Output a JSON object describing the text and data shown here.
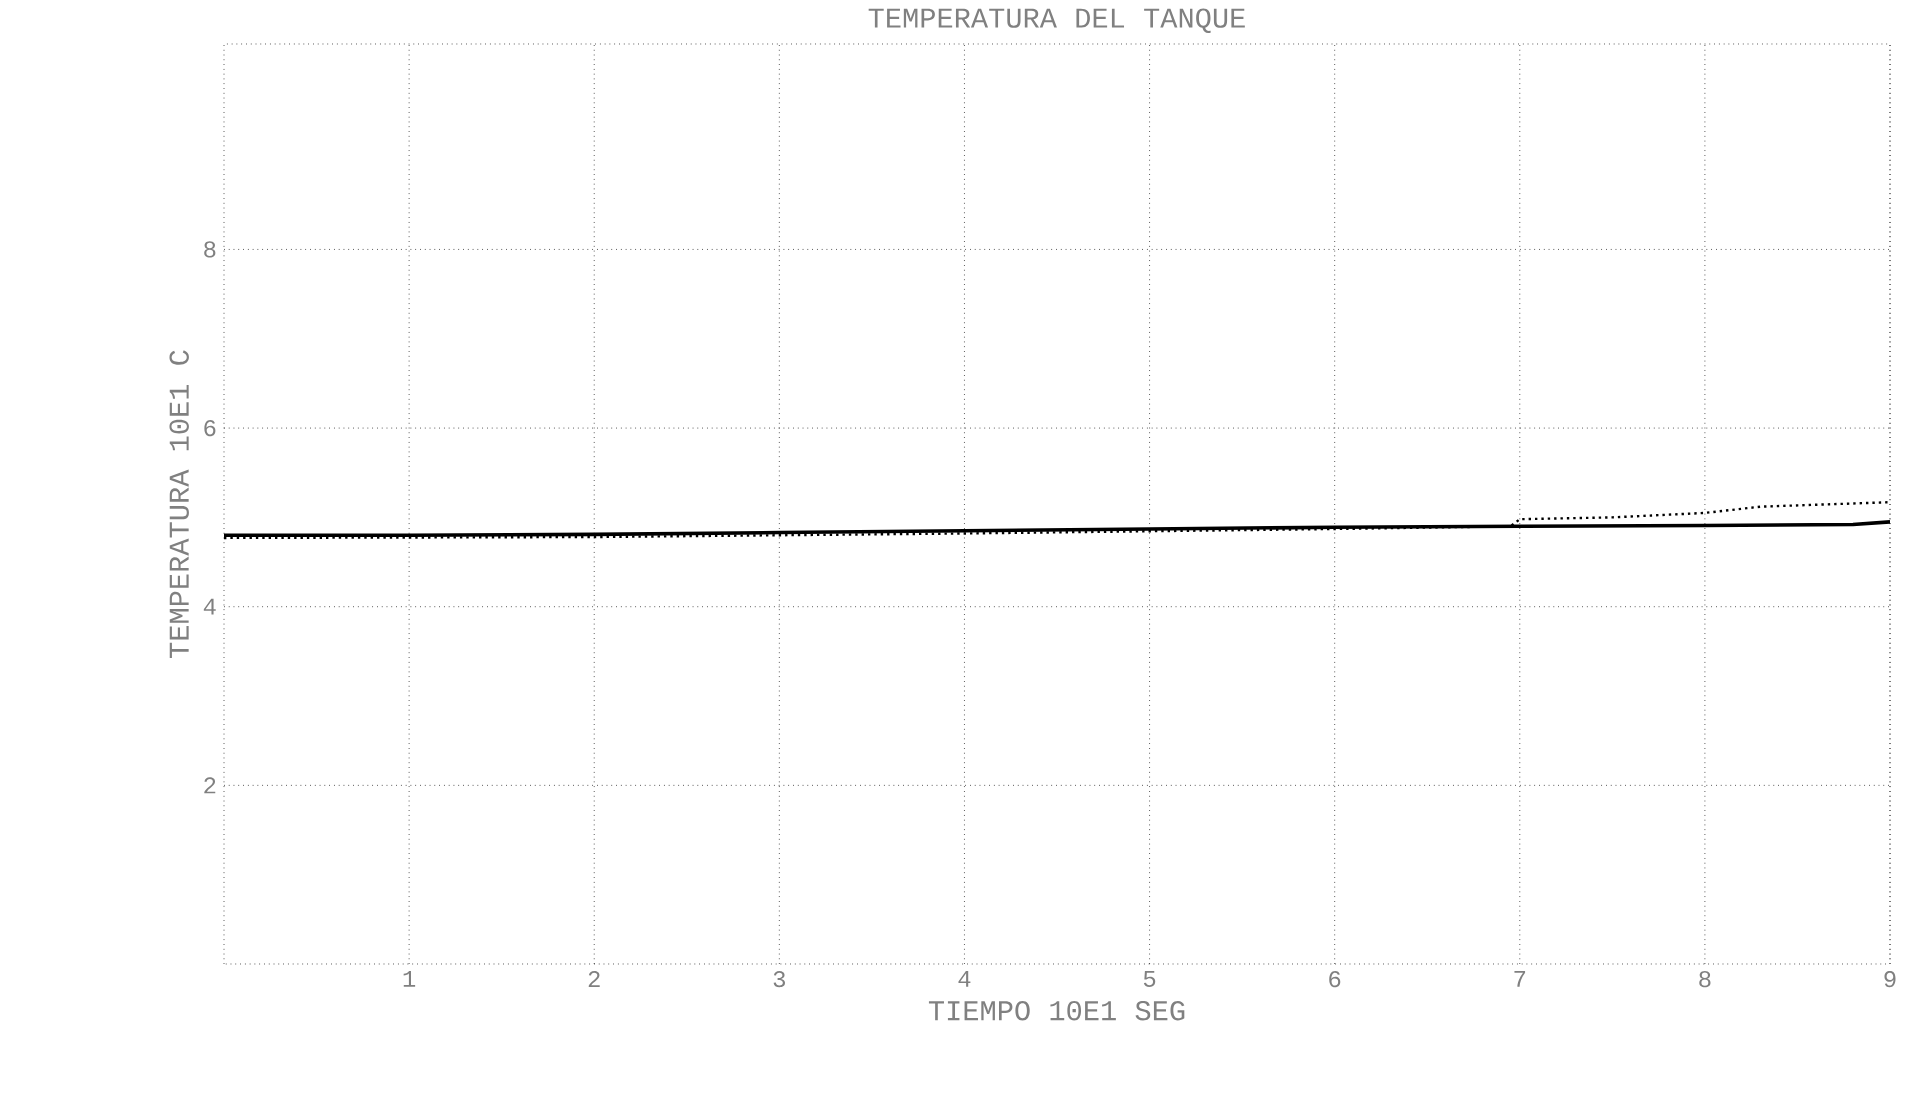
{
  "chart_data": {
    "type": "line",
    "title": "TEMPERATURA DEL TANQUE",
    "xlabel": "TIEMPO 10E1 SEG",
    "ylabel": "TEMPERATURA 10E1 C",
    "xlim": [
      0,
      9
    ],
    "ylim": [
      0,
      10.3
    ],
    "xticks": [
      1,
      2,
      3,
      4,
      5,
      6,
      7,
      8,
      9
    ],
    "yticks": [
      2,
      4,
      6,
      8
    ],
    "grid": true,
    "series": [
      {
        "color": "#000000",
        "line_style": "solid",
        "x": [
          0,
          1,
          2,
          3,
          4,
          5,
          6,
          7,
          8,
          8.8,
          9
        ],
        "values": [
          4.8,
          4.8,
          4.81,
          4.83,
          4.85,
          4.87,
          4.89,
          4.9,
          4.91,
          4.92,
          4.95
        ]
      },
      {
        "color": "#000000",
        "line_style": "dotted",
        "x": [
          0,
          2,
          4,
          6,
          6.95,
          7,
          7.5,
          8,
          8.3,
          9
        ],
        "values": [
          4.77,
          4.78,
          4.82,
          4.87,
          4.9,
          4.98,
          5.0,
          5.05,
          5.12,
          5.17
        ]
      }
    ]
  }
}
